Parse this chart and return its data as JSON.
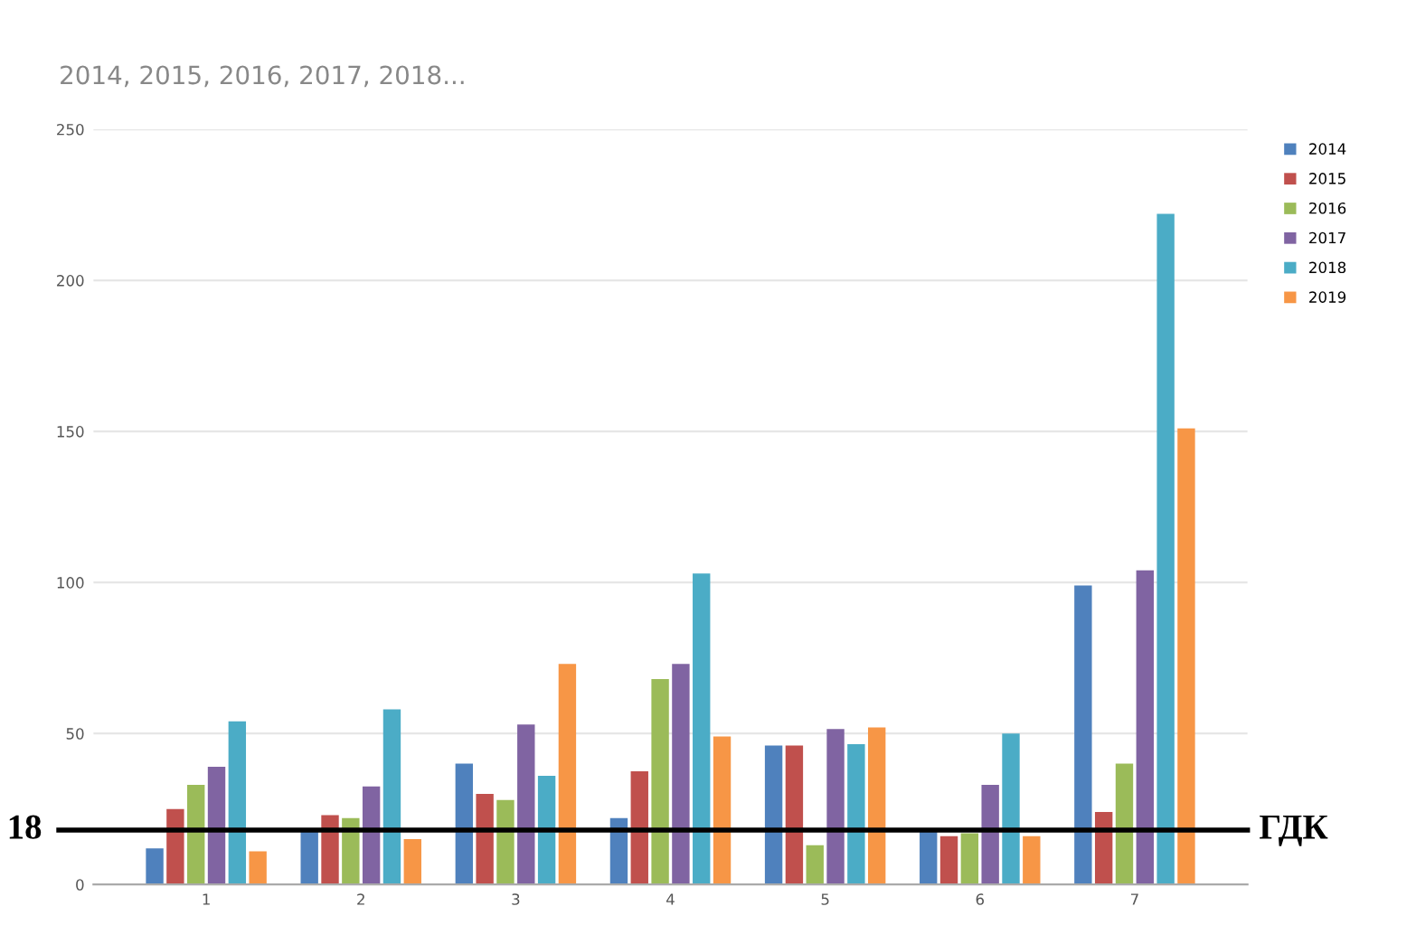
{
  "chart_data": {
    "type": "bar",
    "title": "2014, 2015, 2016, 2017, 2018...",
    "categories": [
      "1",
      "2",
      "3",
      "4",
      "5",
      "6",
      "7"
    ],
    "series": [
      {
        "name": "2014",
        "color": "#4f81bd",
        "values": [
          12,
          18,
          40,
          22,
          46,
          18.5,
          99
        ]
      },
      {
        "name": "2015",
        "color": "#c0504d",
        "values": [
          25,
          23,
          30,
          37.5,
          46,
          16,
          24
        ]
      },
      {
        "name": "2016",
        "color": "#9bbb59",
        "values": [
          33,
          22,
          28,
          68,
          13,
          17,
          40
        ]
      },
      {
        "name": "2017",
        "color": "#8064a2",
        "values": [
          39,
          32.5,
          53,
          73,
          51.5,
          33,
          104
        ]
      },
      {
        "name": "2018",
        "color": "#4bacc6",
        "values": [
          54,
          58,
          36,
          103,
          46.5,
          50,
          222
        ]
      },
      {
        "name": "2019",
        "color": "#f79646",
        "values": [
          11,
          15,
          73,
          49,
          52,
          16,
          151
        ]
      }
    ],
    "ylim": [
      0,
      250
    ],
    "yticks": [
      0,
      50,
      100,
      150,
      200,
      250
    ],
    "grid": "y",
    "legend": "top right",
    "ref_lines": [
      {
        "axis": "y",
        "value": 18,
        "label": "ГДК",
        "color": "#000000"
      }
    ],
    "annotations": [
      "18"
    ]
  }
}
